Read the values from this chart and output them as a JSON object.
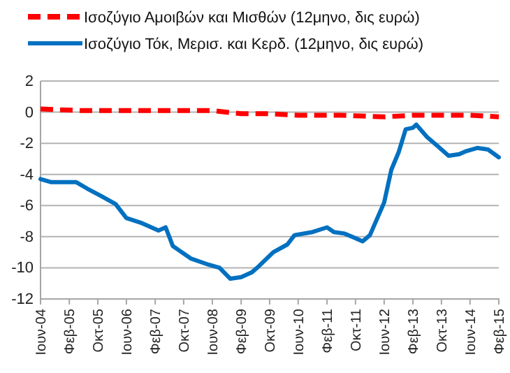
{
  "chart_data": {
    "type": "line",
    "legend": "top left",
    "grid": "y",
    "marker": "none",
    "xlim": [
      "2004-06",
      "2015-02"
    ],
    "xticks": [
      {
        "value": "2004-06",
        "label": "Ιουν-04"
      },
      {
        "value": "2005-02",
        "label": "Φεβ-05"
      },
      {
        "value": "2005-10",
        "label": "Οκτ-05"
      },
      {
        "value": "2006-06",
        "label": "Ιουν-06"
      },
      {
        "value": "2007-02",
        "label": "Φεβ-07"
      },
      {
        "value": "2007-10",
        "label": "Οκτ-07"
      },
      {
        "value": "2008-06",
        "label": "Ιουν-08"
      },
      {
        "value": "2009-02",
        "label": "Φεβ-09"
      },
      {
        "value": "2009-10",
        "label": "Οκτ-09"
      },
      {
        "value": "2010-06",
        "label": "Ιουν-10"
      },
      {
        "value": "2011-02",
        "label": "Φεβ-11"
      },
      {
        "value": "2011-10",
        "label": "Οκτ-11"
      },
      {
        "value": "2012-06",
        "label": "Ιουν-12"
      },
      {
        "value": "2013-02",
        "label": "Φεβ-13"
      },
      {
        "value": "2013-10",
        "label": "Οκτ-13"
      },
      {
        "value": "2014-06",
        "label": "Ιουν-14"
      },
      {
        "value": "2015-02",
        "label": "Φεβ-15"
      }
    ],
    "ylim": [
      -12,
      2
    ],
    "yticks": [
      -12,
      -10,
      -8,
      -6,
      -4,
      -2,
      0,
      2
    ],
    "series": [
      {
        "name": "Ισοζύγιο Αμοιβών και Μισθών (12μηνο, δις ευρώ)",
        "color": "#ff0000",
        "line_style": "dashed",
        "x": [
          "2004-06",
          "2005-06",
          "2006-06",
          "2007-06",
          "2008-06",
          "2009-02",
          "2009-10",
          "2010-06",
          "2011-06",
          "2012-06",
          "2013-02",
          "2014-02",
          "2014-06",
          "2015-02"
        ],
        "values": [
          0.2,
          0.1,
          0.1,
          0.1,
          0.1,
          -0.1,
          -0.1,
          -0.2,
          -0.2,
          -0.3,
          -0.2,
          -0.2,
          -0.2,
          -0.3
        ]
      },
      {
        "name": "Ισοζύγιο Τόκ, Μερισ. και Κερδ. (12μηνο, δις ευρώ)",
        "color": "#0070c0",
        "line_style": "solid",
        "x": [
          "2004-06",
          "2004-09",
          "2005-04",
          "2005-07",
          "2005-11",
          "2006-03",
          "2006-06",
          "2006-10",
          "2007-03",
          "2007-05",
          "2007-07",
          "2007-12",
          "2008-05",
          "2008-08",
          "2008-11",
          "2009-02",
          "2009-05",
          "2009-07",
          "2009-11",
          "2010-03",
          "2010-05",
          "2010-10",
          "2011-02",
          "2011-04",
          "2011-07",
          "2011-10",
          "2011-12",
          "2012-02",
          "2012-06",
          "2012-08",
          "2012-10",
          "2012-12",
          "2013-02",
          "2013-03",
          "2013-06",
          "2013-09",
          "2013-12",
          "2014-03",
          "2014-05",
          "2014-08",
          "2014-11",
          "2015-02"
        ],
        "values": [
          -4.3,
          -4.5,
          -4.5,
          -4.9,
          -5.4,
          -5.9,
          -6.8,
          -7.1,
          -7.6,
          -7.4,
          -8.6,
          -9.4,
          -9.8,
          -10.0,
          -10.7,
          -10.6,
          -10.3,
          -9.9,
          -9.0,
          -8.5,
          -7.9,
          -7.7,
          -7.4,
          -7.7,
          -7.8,
          -8.1,
          -8.3,
          -7.9,
          -5.8,
          -3.7,
          -2.6,
          -1.1,
          -1.0,
          -0.8,
          -1.6,
          -2.2,
          -2.8,
          -2.7,
          -2.5,
          -2.3,
          -2.4,
          -2.9
        ]
      }
    ]
  }
}
